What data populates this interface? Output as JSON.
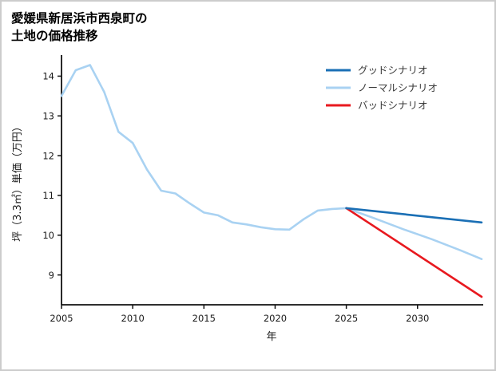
{
  "title": {
    "line1": "愛媛県新居浜市西泉町の",
    "line2": "土地の価格推移"
  },
  "chart_data": {
    "type": "line",
    "title": "愛媛県新居浜市西泉町の土地の価格推移",
    "xlabel": "年",
    "ylabel": "坪（3.3㎡）単価（万円）",
    "xlim": [
      2005,
      2034.5
    ],
    "ylim": [
      8.25,
      14.45
    ],
    "xticks": [
      2005,
      2010,
      2015,
      2020,
      2025,
      2030
    ],
    "yticks": [
      9,
      10,
      11,
      12,
      13,
      14
    ],
    "grid": false,
    "legend_position": "top-right",
    "series": [
      {
        "key": "good",
        "name": "グッドシナリオ",
        "color": "#1a6fb5",
        "points": [
          [
            2025,
            10.68
          ],
          [
            2034.5,
            10.32
          ]
        ]
      },
      {
        "key": "normal",
        "name": "ノーマルシナリオ",
        "color": "#a9d2f2",
        "points": [
          [
            2005,
            13.5
          ],
          [
            2006,
            14.15
          ],
          [
            2007,
            14.28
          ],
          [
            2008,
            13.6
          ],
          [
            2009,
            12.6
          ],
          [
            2010,
            12.32
          ],
          [
            2011,
            11.65
          ],
          [
            2012,
            11.12
          ],
          [
            2013,
            11.05
          ],
          [
            2014,
            10.8
          ],
          [
            2015,
            10.57
          ],
          [
            2016,
            10.5
          ],
          [
            2017,
            10.32
          ],
          [
            2018,
            10.27
          ],
          [
            2019,
            10.2
          ],
          [
            2020,
            10.15
          ],
          [
            2021,
            10.14
          ],
          [
            2022,
            10.4
          ],
          [
            2023,
            10.62
          ],
          [
            2024,
            10.66
          ],
          [
            2025,
            10.68
          ],
          [
            2027,
            10.42
          ],
          [
            2029,
            10.15
          ],
          [
            2031,
            9.9
          ],
          [
            2033,
            9.62
          ],
          [
            2034.5,
            9.4
          ]
        ]
      },
      {
        "key": "bad",
        "name": "バッドシナリオ",
        "color": "#e8191f",
        "points": [
          [
            2025,
            10.68
          ],
          [
            2034.5,
            8.45
          ]
        ]
      }
    ]
  }
}
